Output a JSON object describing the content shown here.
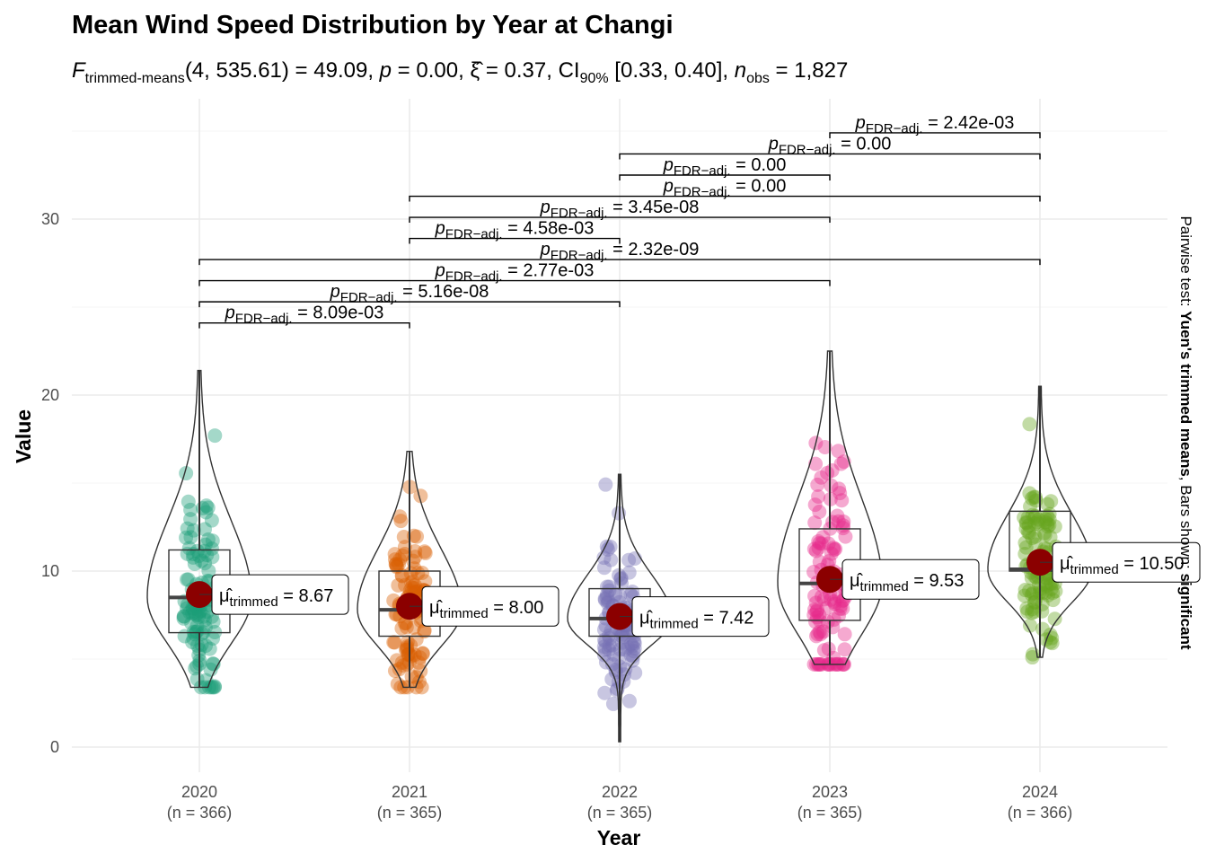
{
  "title": "Mean Wind Speed Distribution by Year at Changi",
  "subtitle": {
    "stat_name": "trimmed-means",
    "df": "(4, 535.61)",
    "statistic": "49.09",
    "p": "0.00",
    "effect_size": "0.37",
    "ci_label": "90%",
    "ci": "[0.33, 0.40]",
    "n_obs": "1,827"
  },
  "side_label": {
    "prefix": "Pairwise test: ",
    "test": "Yuen's trimmed means",
    "mid": ", Bars shown: ",
    "shown": "significant"
  },
  "colors": {
    "2020": "#1b9e77",
    "2021": "#d95f02",
    "2022": "#7570b3",
    "2023": "#e7298a",
    "2024": "#66a61e",
    "mean_point": "#8b0000"
  },
  "chart_data": {
    "type": "violin-box-scatter",
    "xlabel": "Year",
    "ylabel": "Value",
    "ylim": [
      0,
      35
    ],
    "yticks": [
      0,
      10,
      20,
      30
    ],
    "grid": true,
    "categories": [
      "2020",
      "2021",
      "2022",
      "2023",
      "2024"
    ],
    "n": [
      "(n = 366)",
      "(n = 365)",
      "(n = 365)",
      "(n = 365)",
      "(n = 366)"
    ],
    "trimmed_means": [
      8.67,
      8.0,
      7.42,
      9.53,
      10.5
    ],
    "mean_labels": [
      "8.67",
      "8.00",
      "7.42",
      "9.53",
      "10.50"
    ],
    "boxes": [
      {
        "whisker_low": 3.4,
        "q1": 6.5,
        "median": 8.5,
        "q3": 11.2,
        "whisker_high": 21.4
      },
      {
        "whisker_low": 3.4,
        "q1": 6.3,
        "median": 7.8,
        "q3": 10.0,
        "whisker_high": 16.8
      },
      {
        "whisker_low": 0.3,
        "q1": 6.3,
        "median": 7.3,
        "q3": 9.0,
        "whisker_high": 15.5
      },
      {
        "whisker_low": 4.7,
        "q1": 7.2,
        "median": 9.3,
        "q3": 12.4,
        "whisker_high": 22.5
      },
      {
        "whisker_low": 5.1,
        "q1": 10.0,
        "median": 10.1,
        "q3": 13.4,
        "whisker_high": 20.5
      }
    ],
    "comparisons": [
      {
        "from": "2020",
        "to": "2021",
        "y": 24.1,
        "p": "8.09e-03"
      },
      {
        "from": "2020",
        "to": "2022",
        "y": 25.3,
        "p": "5.16e-08"
      },
      {
        "from": "2020",
        "to": "2023",
        "y": 26.5,
        "p": "2.77e-03"
      },
      {
        "from": "2020",
        "to": "2024",
        "y": 27.7,
        "p": "2.32e-09"
      },
      {
        "from": "2021",
        "to": "2022",
        "y": 28.9,
        "p": "4.58e-03"
      },
      {
        "from": "2021",
        "to": "2023",
        "y": 30.1,
        "p": "3.45e-08"
      },
      {
        "from": "2021",
        "to": "2024",
        "y": 31.3,
        "p": "0.00"
      },
      {
        "from": "2022",
        "to": "2023",
        "y": 32.5,
        "p": "0.00"
      },
      {
        "from": "2022",
        "to": "2024",
        "y": 33.7,
        "p": "0.00"
      },
      {
        "from": "2023",
        "to": "2024",
        "y": 34.9,
        "p": "2.42e-03"
      }
    ]
  }
}
